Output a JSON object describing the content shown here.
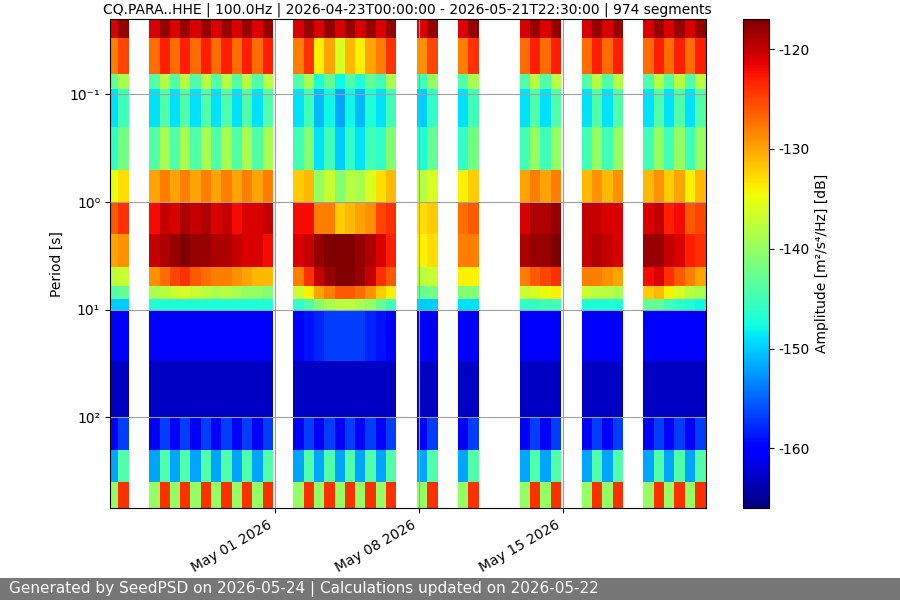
{
  "chart_data": {
    "type": "heatmap",
    "title": "CQ.PARA..HHE | 100.0Hz | 2026-04-23T00:00:00 - 2026-05-21T22:30:00 | 974 segments",
    "y_label": "Period [s]",
    "footer": "Generated by SeedPSD on 2026-05-24 | Calculations updated on 2026-05-22",
    "log": "y",
    "grid": true,
    "x": [
      "2026-04-23T00:00",
      "2026-04-23T10:00",
      "2026-04-23T22:00",
      "2026-04-24T10:00",
      "2026-04-24T22:00",
      "2026-04-25T10:00",
      "2026-04-25T22:00",
      "2026-04-26T10:00",
      "2026-04-26T22:00",
      "2026-04-27T10:00",
      "2026-04-27T22:00",
      "2026-04-28T10:00",
      "2026-04-28T22:00",
      "2026-04-29T10:00",
      "2026-04-29T22:00",
      "2026-04-30T10:00",
      "2026-04-30T22:00",
      "2026-05-01T10:00",
      "2026-05-01T22:00",
      "2026-05-02T10:00",
      "2026-05-02T22:00",
      "2026-05-03T10:00",
      "2026-05-03T22:00",
      "2026-05-04T10:00",
      "2026-05-04T22:00",
      "2026-05-05T10:00",
      "2026-05-05T22:00",
      "2026-05-06T10:00",
      "2026-05-06T22:00",
      "2026-05-07T10:00",
      "2026-05-07T22:00",
      "2026-05-08T10:00",
      "2026-05-08T22:00",
      "2026-05-09T10:00",
      "2026-05-09T22:00",
      "2026-05-10T10:00",
      "2026-05-10T22:00",
      "2026-05-11T10:00",
      "2026-05-11T22:00",
      "2026-05-12T10:00",
      "2026-05-12T22:00",
      "2026-05-13T10:00",
      "2026-05-13T22:00",
      "2026-05-14T10:00",
      "2026-05-14T22:00",
      "2026-05-15T10:00",
      "2026-05-15T22:00",
      "2026-05-16T10:00",
      "2026-05-16T22:00",
      "2026-05-17T10:00",
      "2026-05-17T22:00",
      "2026-05-18T10:00",
      "2026-05-18T22:00",
      "2026-05-19T10:00",
      "2026-05-19T22:00",
      "2026-05-20T10:00",
      "2026-05-20T22:00",
      "2026-05-21T10:00",
      "2026-05-21T22:30"
    ],
    "y": [
      0.02,
      0.03,
      0.065,
      0.09,
      0.2,
      0.5,
      1.0,
      2.0,
      4.0,
      6.0,
      8.0,
      10.0,
      30.0,
      100.0,
      200.0,
      400.0,
      700.0
    ],
    "xlim": [
      "2026-04-23T00:00",
      "2026-05-21T22:30"
    ],
    "xticks": [
      {
        "value": "2026-05-01",
        "label": "May 01 2026"
      },
      {
        "value": "2026-05-08",
        "label": "May 08 2026"
      },
      {
        "value": "2026-05-15",
        "label": "May 15 2026"
      }
    ],
    "ylim": [
      700,
      0.02
    ],
    "yticks": [
      {
        "value": 0.1,
        "label": "10⁻¹"
      },
      {
        "value": 1,
        "label": "10⁰"
      },
      {
        "value": 10,
        "label": "10¹"
      },
      {
        "value": 100,
        "label": "10²"
      }
    ],
    "colorbar": {
      "label": "Amplitude [m²/s⁴/Hz] [dB]",
      "range": [
        -166,
        -117
      ],
      "ticks": [
        -160,
        -150,
        -140,
        -130,
        -120
      ]
    },
    "cells": [
      [
        -121,
        -118,
        null,
        null,
        -121,
        -118,
        -121,
        -118,
        -121,
        -118,
        -121,
        -118,
        -121,
        -118,
        -121,
        -118,
        null,
        null,
        -121,
        -118,
        -121,
        -118,
        -121,
        -118,
        -121,
        -118,
        -121,
        -118,
        null,
        null,
        -121,
        -118,
        null,
        null,
        -121,
        -118,
        null,
        null,
        null,
        null,
        -121,
        -118,
        -121,
        -118,
        null,
        null,
        -121,
        -118,
        -121,
        -118,
        null,
        null,
        -121,
        -118,
        -121,
        -118,
        -121,
        -118
      ],
      [
        -128,
        -125,
        null,
        null,
        -127,
        -123,
        -127,
        -123,
        -127,
        -123,
        -127,
        -123,
        -127,
        -123,
        -127,
        -123,
        null,
        null,
        -128,
        -124,
        -134,
        -130,
        -136,
        -131,
        -134,
        -130,
        -128,
        -124,
        null,
        null,
        -129,
        -125,
        null,
        null,
        -128,
        -124,
        null,
        null,
        null,
        null,
        -127,
        -123,
        -127,
        -123,
        null,
        null,
        -127,
        -123,
        -127,
        -123,
        null,
        null,
        -127,
        -123,
        -127,
        -123,
        -127,
        -123
      ],
      [
        -143,
        -139,
        null,
        null,
        -144,
        -138,
        -144,
        -138,
        -144,
        -138,
        -144,
        -138,
        -144,
        -138,
        -144,
        -138,
        null,
        null,
        -144,
        -139,
        -147,
        -143,
        -148,
        -144,
        -147,
        -143,
        -145,
        -139,
        null,
        null,
        -145,
        -140,
        null,
        null,
        -144,
        -139,
        null,
        null,
        null,
        null,
        -144,
        -138,
        -144,
        -138,
        null,
        null,
        -144,
        -138,
        -144,
        -138,
        null,
        null,
        -144,
        -138,
        -144,
        -138,
        -144,
        -138
      ],
      [
        -149,
        -145,
        null,
        null,
        -149,
        -144,
        -149,
        -144,
        -149,
        -144,
        -149,
        -144,
        -149,
        -144,
        -149,
        -144,
        null,
        null,
        -149,
        -145,
        -151,
        -148,
        -152,
        -148,
        -151,
        -147,
        -149,
        -145,
        null,
        null,
        -150,
        -146,
        null,
        null,
        -149,
        -145,
        null,
        null,
        null,
        null,
        -149,
        -144,
        -149,
        -144,
        null,
        null,
        -149,
        -144,
        -149,
        -144,
        null,
        null,
        -149,
        -144,
        -149,
        -144,
        -149,
        -144
      ],
      [
        -146,
        -142,
        null,
        null,
        -144,
        -139,
        -144,
        -139,
        -144,
        -139,
        -144,
        -139,
        -144,
        -139,
        -144,
        -139,
        null,
        null,
        -145,
        -141,
        -149,
        -145,
        -150,
        -146,
        -149,
        -145,
        -146,
        -141,
        null,
        null,
        -147,
        -143,
        null,
        null,
        -146,
        -142,
        null,
        null,
        null,
        null,
        -145,
        -140,
        -145,
        -140,
        null,
        null,
        -145,
        -140,
        -145,
        -140,
        null,
        null,
        -145,
        -140,
        -145,
        -140,
        -145,
        -140
      ],
      [
        -135,
        -133,
        null,
        null,
        -130,
        -128,
        -130,
        -128,
        -130,
        -128,
        -130,
        -128,
        -130,
        -128,
        -130,
        -128,
        null,
        null,
        -132,
        -131,
        -140,
        -137,
        -141,
        -138,
        -139,
        -136,
        -133,
        -131,
        null,
        null,
        -138,
        -136,
        null,
        null,
        -134,
        -132,
        null,
        null,
        null,
        null,
        -130,
        -128,
        -130,
        -128,
        null,
        null,
        -131,
        -129,
        -131,
        -129,
        null,
        null,
        -131,
        -129,
        -132,
        -130,
        -134,
        -131
      ],
      [
        -126,
        -124,
        null,
        null,
        -122,
        -120,
        -121,
        -119,
        -120,
        -119,
        -121,
        -120,
        -122,
        -121,
        -121,
        -120,
        null,
        null,
        -122,
        -122,
        -128,
        -128,
        -132,
        -131,
        -130,
        -129,
        -125,
        -124,
        null,
        null,
        -133,
        -132,
        null,
        null,
        -127,
        -126,
        null,
        null,
        null,
        null,
        -121,
        -119,
        -119,
        -118,
        null,
        null,
        -120,
        -120,
        -121,
        -121,
        null,
        null,
        -121,
        -120,
        -123,
        -122,
        -126,
        -125
      ],
      [
        -130,
        -129,
        null,
        null,
        -120,
        -119,
        -118,
        -117,
        -118,
        -118,
        -119,
        -119,
        -120,
        -121,
        -121,
        -122,
        null,
        null,
        -121,
        -120,
        -118,
        -117,
        -117,
        -117,
        -118,
        -119,
        -121,
        -123,
        null,
        null,
        -134,
        -133,
        null,
        null,
        -128,
        -128,
        null,
        null,
        null,
        null,
        -119,
        -118,
        -118,
        -117,
        null,
        null,
        -120,
        -119,
        -120,
        -121,
        null,
        null,
        -118,
        -118,
        -120,
        -121,
        -123,
        -124
      ],
      [
        -138,
        -137,
        null,
        null,
        -129,
        -127,
        -125,
        -124,
        -126,
        -127,
        -128,
        -128,
        -129,
        -130,
        -131,
        -131,
        null,
        null,
        -128,
        -124,
        -120,
        -118,
        -117,
        -117,
        -118,
        -120,
        -124,
        -126,
        null,
        null,
        -138,
        -137,
        null,
        null,
        -134,
        -134,
        null,
        null,
        null,
        null,
        -128,
        -126,
        -125,
        -124,
        null,
        null,
        -128,
        -128,
        -129,
        -130,
        null,
        null,
        -122,
        -121,
        -124,
        -126,
        -128,
        -130
      ],
      [
        -144,
        -143,
        null,
        null,
        -139,
        -138,
        -137,
        -136,
        -137,
        -138,
        -139,
        -138,
        -139,
        -140,
        -140,
        -141,
        null,
        null,
        -137,
        -134,
        -130,
        -128,
        -126,
        -126,
        -127,
        -129,
        -132,
        -134,
        null,
        null,
        -143,
        -142,
        null,
        null,
        -141,
        -141,
        null,
        null,
        null,
        null,
        -137,
        -136,
        -135,
        -134,
        null,
        null,
        -137,
        -138,
        -138,
        -139,
        null,
        null,
        -132,
        -131,
        -134,
        -136,
        -138,
        -139
      ],
      [
        -150,
        -150,
        null,
        null,
        -147,
        -147,
        -147,
        -147,
        -147,
        -147,
        -147,
        -147,
        -147,
        -147,
        -147,
        -147,
        null,
        null,
        -146,
        -144,
        -141,
        -139,
        -138,
        -138,
        -139,
        -140,
        -143,
        -145,
        null,
        null,
        -150,
        -150,
        null,
        null,
        -149,
        -149,
        null,
        null,
        null,
        null,
        -146,
        -146,
        -145,
        -145,
        null,
        null,
        -147,
        -147,
        -147,
        -147,
        null,
        null,
        -143,
        -143,
        -145,
        -146,
        -147,
        -148
      ],
      [
        -160,
        -160,
        null,
        null,
        -160,
        -160,
        -160,
        -160,
        -160,
        -160,
        -160,
        -160,
        -160,
        -160,
        -160,
        -160,
        null,
        null,
        -160,
        -159,
        -158,
        -157,
        -157,
        -157,
        -157,
        -158,
        -159,
        -160,
        null,
        null,
        -161,
        -161,
        null,
        null,
        -160,
        -160,
        null,
        null,
        null,
        null,
        -160,
        -160,
        -160,
        -160,
        null,
        null,
        -160,
        -160,
        -160,
        -160,
        null,
        null,
        -160,
        -160,
        -160,
        -160,
        -160,
        -160
      ],
      [
        -163,
        -163,
        null,
        null,
        -163,
        -163,
        -163,
        -163,
        -163,
        -163,
        -163,
        -163,
        -163,
        -163,
        -163,
        -163,
        null,
        null,
        -163,
        -163,
        -163,
        -163,
        -163,
        -163,
        -163,
        -163,
        -163,
        -163,
        null,
        null,
        -163,
        -163,
        null,
        null,
        -163,
        -163,
        null,
        null,
        null,
        null,
        -163,
        -163,
        -163,
        -163,
        null,
        null,
        -163,
        -163,
        -163,
        -163,
        null,
        null,
        -163,
        -163,
        -163,
        -163,
        -163,
        -163
      ],
      [
        -161,
        -157,
        null,
        null,
        -161,
        -157,
        -161,
        -157,
        -161,
        -157,
        -161,
        -157,
        -161,
        -157,
        -161,
        -157,
        null,
        null,
        -161,
        -157,
        -161,
        -157,
        -161,
        -157,
        -161,
        -157,
        -161,
        -157,
        null,
        null,
        -161,
        -157,
        null,
        null,
        -161,
        -157,
        null,
        null,
        null,
        null,
        -161,
        -157,
        -161,
        -157,
        null,
        null,
        -161,
        -157,
        -161,
        -157,
        null,
        null,
        -161,
        -157,
        -161,
        -157,
        -161,
        -157
      ],
      [
        -152,
        -144,
        null,
        null,
        -152,
        -144,
        -152,
        -144,
        -152,
        -144,
        -152,
        -144,
        -152,
        -144,
        -152,
        -144,
        null,
        null,
        -152,
        -144,
        -152,
        -144,
        -152,
        -144,
        -152,
        -144,
        -152,
        -144,
        null,
        null,
        -152,
        -144,
        null,
        null,
        -152,
        -144,
        null,
        null,
        null,
        null,
        -152,
        -144,
        -152,
        -144,
        null,
        null,
        -152,
        -144,
        -152,
        -144,
        null,
        null,
        -152,
        -144,
        -152,
        -144,
        -152,
        -144
      ],
      [
        -140,
        -124,
        null,
        null,
        -140,
        -124,
        -140,
        -124,
        -140,
        -124,
        -140,
        -124,
        -140,
        -124,
        -140,
        -124,
        null,
        null,
        -140,
        -124,
        -140,
        -124,
        -140,
        -124,
        -140,
        -124,
        -140,
        -124,
        null,
        null,
        -140,
        -124,
        null,
        null,
        -140,
        -124,
        null,
        null,
        null,
        null,
        -140,
        -124,
        -140,
        -124,
        null,
        null,
        -140,
        -124,
        -140,
        -124,
        null,
        null,
        -140,
        -124,
        -140,
        -124,
        -140,
        -124
      ]
    ]
  }
}
